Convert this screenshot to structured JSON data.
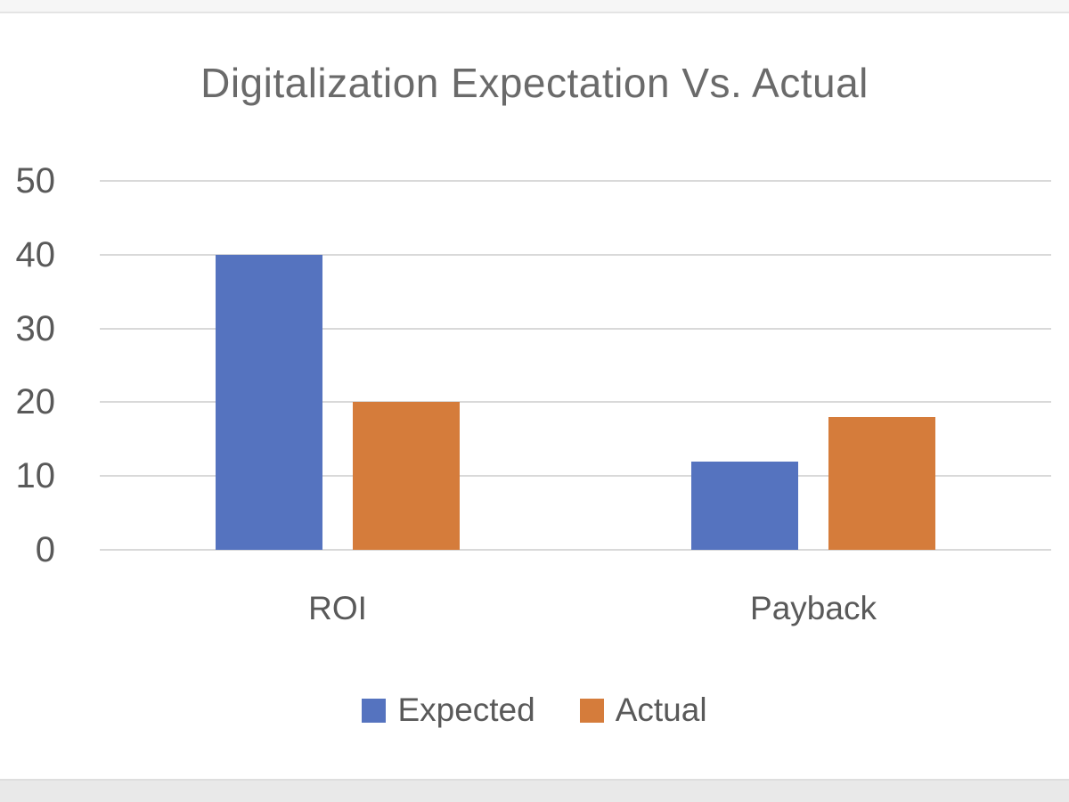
{
  "window": {
    "background_color": "#ffffff",
    "top_strip_color": "#f6f6f6",
    "bottom_strip_color": "#e9e9e9"
  },
  "chart_data": {
    "type": "bar",
    "title": "Digitalization Expectation Vs. Actual",
    "categories": [
      "ROI",
      "Payback"
    ],
    "series": [
      {
        "name": "Expected",
        "color": "#5573BF",
        "values": [
          40,
          12
        ]
      },
      {
        "name": "Actual",
        "color": "#D57C3B",
        "values": [
          20,
          18
        ]
      }
    ],
    "xlabel": "",
    "ylabel": "",
    "ylim": [
      0,
      50
    ],
    "yticks": [
      0,
      10,
      20,
      30,
      40,
      50
    ],
    "grid": true,
    "gridline_color": "#d9d9d9",
    "title_color": "#6a6a6a",
    "text_color": "#595959",
    "legend_position": "bottom"
  }
}
